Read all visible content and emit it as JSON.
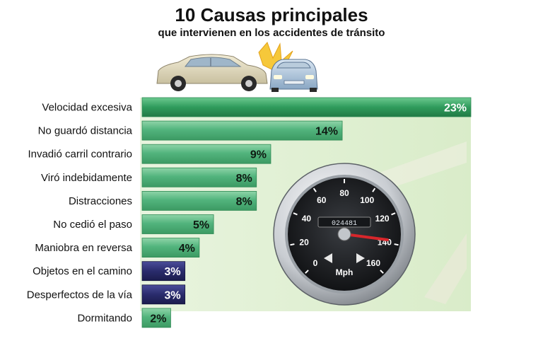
{
  "title": "10 Causas principales",
  "subtitle": "que intervienen en los accidentes de tránsito",
  "gauge": {
    "unit": "Mph",
    "odometer": "024481",
    "ticks": [
      "0",
      "20",
      "40",
      "60",
      "80",
      "100",
      "120",
      "140",
      "160"
    ]
  },
  "colors": {
    "green_bar": "#4fb07a",
    "green_top": "#2e9a5a",
    "navy_bar": "#2b2d6e",
    "panel": "#e6f2dc"
  },
  "chart_data": {
    "type": "bar",
    "orientation": "horizontal",
    "categories": [
      "Velocidad excesiva",
      "No guardó distancia",
      "Invadió carril contrario",
      "Viró indebidamente",
      "Distracciones",
      "No cedió el paso",
      "Maniobra en reversa",
      "Objetos en el camino",
      "Desperfectos de la vía",
      "Dormitando"
    ],
    "values": [
      23,
      14,
      9,
      8,
      8,
      5,
      4,
      3,
      3,
      2
    ],
    "labels": [
      "23%",
      "14%",
      "9%",
      "8%",
      "8%",
      "5%",
      "4%",
      "3%",
      "3%",
      "2%"
    ],
    "bar_colors": [
      "green",
      "green",
      "green",
      "green",
      "green",
      "green",
      "green",
      "navy",
      "navy",
      "green"
    ],
    "xlim": [
      0,
      23
    ]
  }
}
